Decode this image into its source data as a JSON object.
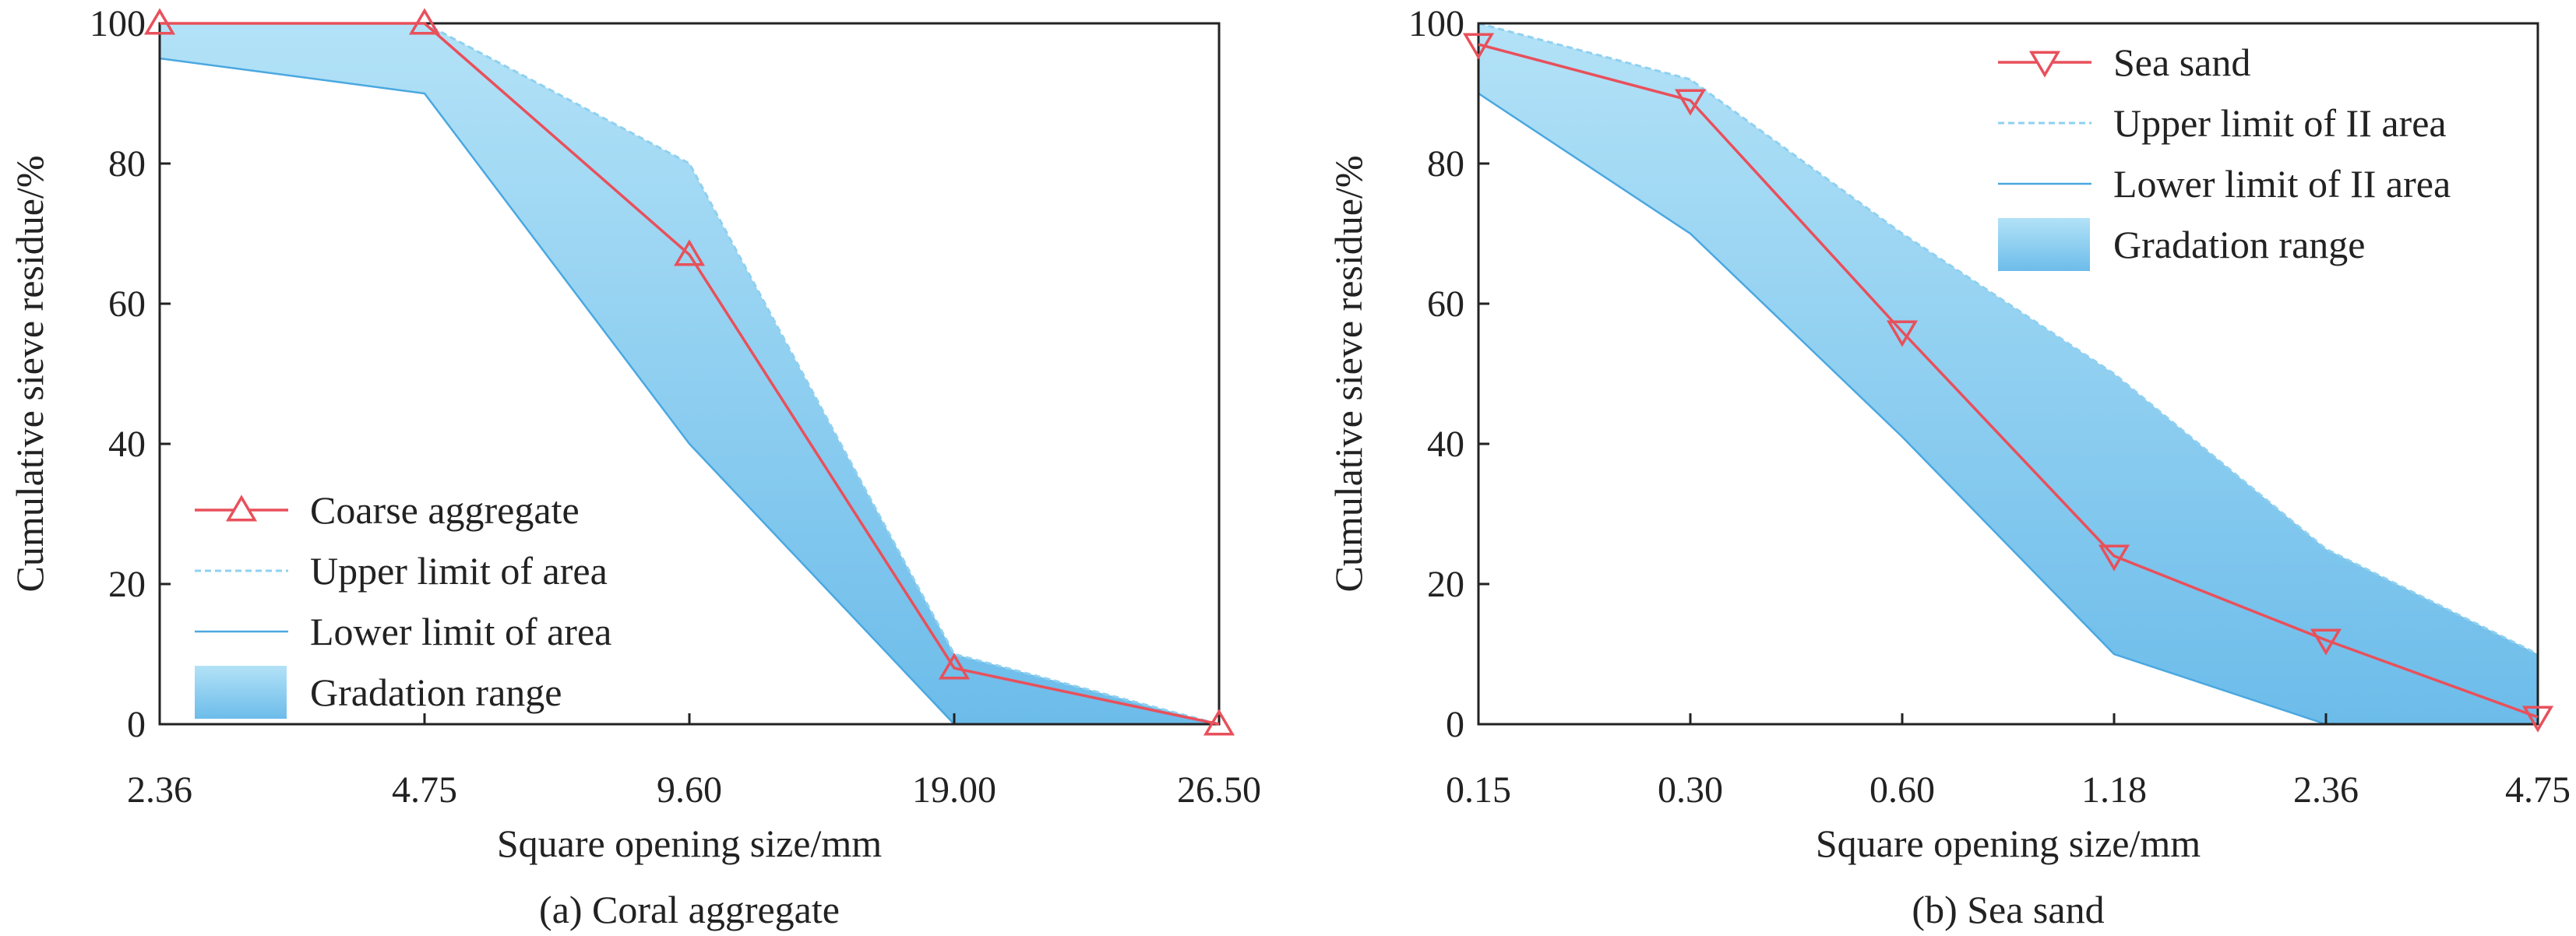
{
  "chart_data": [
    {
      "type": "line",
      "caption": "(a) Coral aggregate",
      "xlabel": "Square opening size/mm",
      "ylabel": "Cumulative sieve residue/%",
      "categories": [
        "2.36",
        "4.75",
        "9.60",
        "19.00",
        "26.50"
      ],
      "ylim": [
        0,
        100
      ],
      "yticks": [
        "0",
        "20",
        "40",
        "60",
        "80",
        "100"
      ],
      "legend_position": "bottom-left",
      "series": [
        {
          "name": "Coarse aggregate",
          "role": "measured",
          "marker": "triangle-up",
          "color": "#e8505b",
          "values": [
            100,
            100,
            67,
            8,
            0
          ]
        },
        {
          "name": "Upper limit of area",
          "role": "upper",
          "color": "#8fd0f0",
          "values": [
            100,
            100,
            80,
            10,
            0
          ]
        },
        {
          "name": "Lower limit of area",
          "role": "lower",
          "color": "#4aa8e0",
          "values": [
            95,
            90,
            40,
            0,
            0
          ]
        },
        {
          "name": "Gradation range",
          "role": "band"
        }
      ]
    },
    {
      "type": "line",
      "caption": "(b) Sea sand",
      "xlabel": "Square opening size/mm",
      "ylabel": "Cumulative sieve residue/%",
      "categories": [
        "0.15",
        "0.30",
        "0.60",
        "1.18",
        "2.36",
        "4.75"
      ],
      "ylim": [
        0,
        100
      ],
      "yticks": [
        "0",
        "20",
        "40",
        "60",
        "80",
        "100"
      ],
      "legend_position": "top-right",
      "series": [
        {
          "name": "Sea sand",
          "role": "measured",
          "marker": "triangle-down",
          "color": "#e8505b",
          "values": [
            97,
            89,
            56,
            24,
            12,
            1
          ]
        },
        {
          "name": "Upper limit of II area",
          "role": "upper",
          "color": "#8fd0f0",
          "values": [
            100,
            92,
            70,
            50,
            25,
            10
          ]
        },
        {
          "name": "Lower limit of II area",
          "role": "lower",
          "color": "#4aa8e0",
          "values": [
            90,
            70,
            41,
            10,
            0,
            0
          ]
        },
        {
          "name": "Gradation range",
          "role": "band"
        }
      ]
    }
  ]
}
